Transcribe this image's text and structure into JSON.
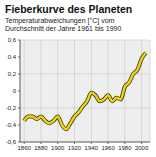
{
  "chart_data": {
    "type": "line",
    "title": "Fieberkurve des Planeten",
    "subtitle": "Temperaturabweichungen [°C] vom Durchschnitt der Jahre 1961 bis 1990",
    "x": [
      1860,
      1865,
      1870,
      1875,
      1880,
      1885,
      1890,
      1895,
      1900,
      1905,
      1910,
      1915,
      1920,
      1925,
      1930,
      1935,
      1940,
      1945,
      1950,
      1955,
      1960,
      1965,
      1970,
      1975,
      1980,
      1985,
      1990,
      1995,
      2000,
      2005
    ],
    "values": [
      -0.35,
      -0.3,
      -0.3,
      -0.33,
      -0.3,
      -0.35,
      -0.38,
      -0.35,
      -0.3,
      -0.4,
      -0.45,
      -0.38,
      -0.3,
      -0.25,
      -0.18,
      -0.12,
      -0.02,
      -0.05,
      -0.12,
      -0.1,
      -0.05,
      -0.12,
      -0.08,
      -0.1,
      0.05,
      0.1,
      0.2,
      0.25,
      0.38,
      0.45
    ],
    "color": "#f2d600",
    "xlim": [
      1855,
      2010
    ],
    "xticks": [
      1860,
      1880,
      1900,
      1920,
      1940,
      1960,
      1980,
      2000
    ],
    "ylim": [
      -0.6,
      0.6
    ],
    "yticks": [
      {
        "value": -0.6,
        "label": "-0,6"
      },
      {
        "value": -0.4,
        "label": "-0,4"
      },
      {
        "value": -0.2,
        "label": "-0,2"
      },
      0,
      {
        "value": 0.2,
        "label": "0,2"
      },
      {
        "value": 0.4,
        "label": "0,4"
      },
      {
        "value": 0.6,
        "label": "0,6"
      }
    ],
    "grid": true
  }
}
